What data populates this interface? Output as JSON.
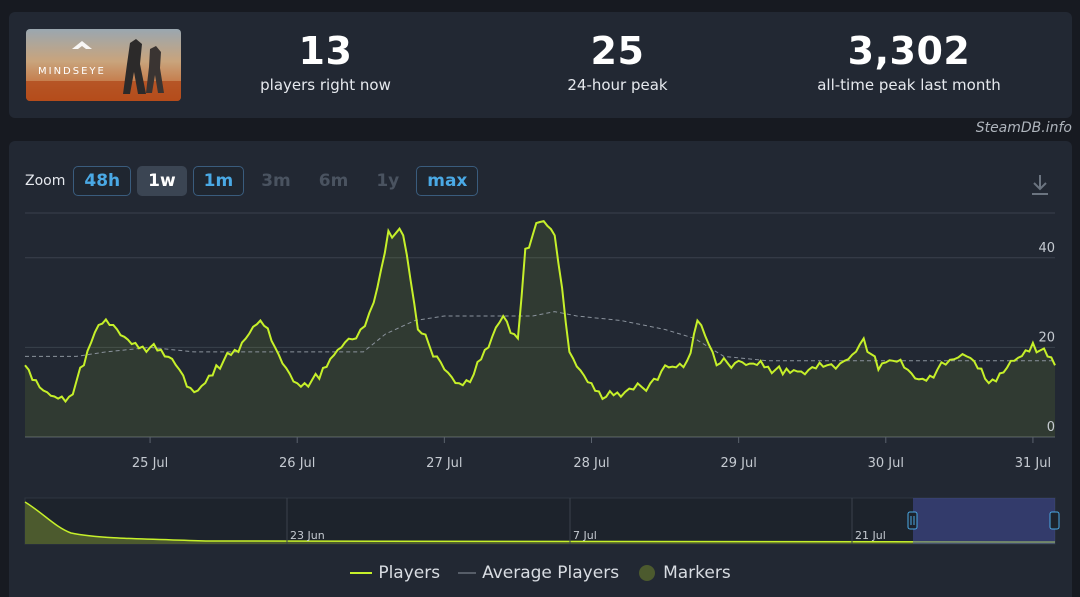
{
  "stats": [
    {
      "value": "13",
      "label": "players right now"
    },
    {
      "value": "25",
      "label": "24-hour peak"
    },
    {
      "value": "3,302",
      "label": "all-time peak last month"
    }
  ],
  "game_image_alt": "MINDSEYE",
  "credit": "SteamDB.info",
  "zoom": {
    "label": "Zoom",
    "buttons": [
      {
        "label": "48h",
        "state": "enabled"
      },
      {
        "label": "1w",
        "state": "selected"
      },
      {
        "label": "1m",
        "state": "enabled"
      },
      {
        "label": "3m",
        "state": "disabled"
      },
      {
        "label": "6m",
        "state": "disabled"
      },
      {
        "label": "1y",
        "state": "disabled"
      },
      {
        "label": "max",
        "state": "enabled"
      }
    ]
  },
  "legend": {
    "players": "Players",
    "average": "Average Players",
    "markers": "Markers"
  },
  "colors": {
    "players": "#c6f02a",
    "average": "#8a929c",
    "markers": "#4c5a2e",
    "accent": "#4aa9e5"
  },
  "chart_data": {
    "type": "line",
    "x_ticks": [
      "25 Jul",
      "26 Jul",
      "27 Jul",
      "28 Jul",
      "29 Jul",
      "30 Jul",
      "31 Jul"
    ],
    "y_ticks": [
      "0",
      "20",
      "40"
    ],
    "ylim": [
      0,
      50
    ],
    "x_range_days": [
      24.15,
      31.15
    ],
    "series": [
      {
        "name": "Players",
        "points": [
          [
            24.15,
            16
          ],
          [
            24.3,
            10
          ],
          [
            24.45,
            9
          ],
          [
            24.55,
            16
          ],
          [
            24.65,
            25
          ],
          [
            24.75,
            25
          ],
          [
            24.9,
            21
          ],
          [
            25.0,
            20
          ],
          [
            25.1,
            18
          ],
          [
            25.2,
            15
          ],
          [
            25.3,
            10
          ],
          [
            25.45,
            16
          ],
          [
            25.6,
            19
          ],
          [
            25.75,
            26
          ],
          [
            25.85,
            20
          ],
          [
            26.0,
            12
          ],
          [
            26.15,
            13
          ],
          [
            26.3,
            20
          ],
          [
            26.4,
            22
          ],
          [
            26.52,
            30
          ],
          [
            26.62,
            46
          ],
          [
            26.72,
            45
          ],
          [
            26.82,
            24
          ],
          [
            26.95,
            18
          ],
          [
            27.1,
            12
          ],
          [
            27.2,
            14
          ],
          [
            27.3,
            20
          ],
          [
            27.4,
            27
          ],
          [
            27.5,
            22
          ],
          [
            27.55,
            42
          ],
          [
            27.65,
            48
          ],
          [
            27.75,
            45
          ],
          [
            27.85,
            19
          ],
          [
            28.0,
            12
          ],
          [
            28.1,
            9
          ],
          [
            28.2,
            9
          ],
          [
            28.4,
            12
          ],
          [
            28.5,
            16
          ],
          [
            28.65,
            17
          ],
          [
            28.72,
            26
          ],
          [
            28.85,
            16
          ],
          [
            29.0,
            17
          ],
          [
            29.15,
            17
          ],
          [
            29.3,
            14
          ],
          [
            29.45,
            14
          ],
          [
            29.6,
            16
          ],
          [
            29.72,
            17
          ],
          [
            29.85,
            22
          ],
          [
            29.95,
            15
          ],
          [
            30.05,
            17
          ],
          [
            30.15,
            15
          ],
          [
            30.25,
            13
          ],
          [
            30.35,
            15
          ],
          [
            30.55,
            18
          ],
          [
            30.7,
            12
          ],
          [
            30.85,
            17
          ],
          [
            31.0,
            21
          ],
          [
            31.15,
            16
          ]
        ]
      },
      {
        "name": "Average Players",
        "points": [
          [
            24.15,
            18
          ],
          [
            24.5,
            18
          ],
          [
            24.7,
            19
          ],
          [
            25.0,
            20
          ],
          [
            25.3,
            19
          ],
          [
            25.6,
            19
          ],
          [
            25.9,
            19
          ],
          [
            26.2,
            19
          ],
          [
            26.45,
            19
          ],
          [
            26.6,
            23
          ],
          [
            26.8,
            26
          ],
          [
            27.0,
            27
          ],
          [
            27.3,
            27
          ],
          [
            27.6,
            27
          ],
          [
            27.75,
            28
          ],
          [
            27.9,
            27
          ],
          [
            28.2,
            26
          ],
          [
            28.5,
            24
          ],
          [
            28.7,
            22
          ],
          [
            28.9,
            18
          ],
          [
            29.2,
            17
          ],
          [
            29.6,
            17
          ],
          [
            30.0,
            17
          ],
          [
            30.5,
            17
          ],
          [
            31.15,
            17
          ]
        ]
      }
    ],
    "navigator": {
      "x_ticks": [
        "23 Jun",
        "7 Jul",
        "21 Jul"
      ],
      "selected_range": [
        "24 Jul",
        "31 Jul"
      ]
    }
  }
}
